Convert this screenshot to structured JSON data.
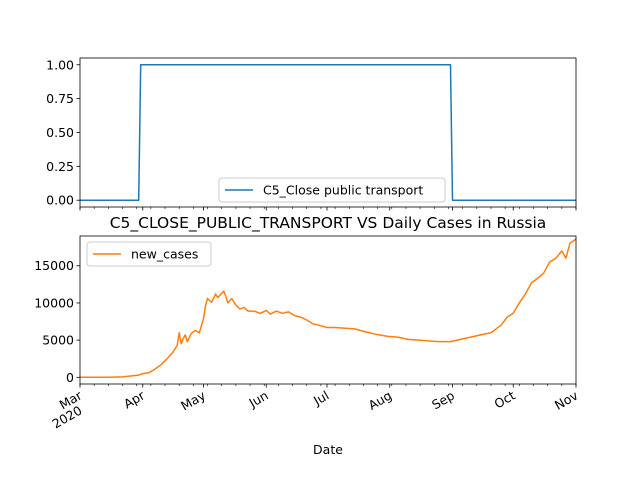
{
  "chart_data": [
    {
      "type": "line",
      "title": "",
      "xlabel": "",
      "ylabel": "",
      "ylim": [
        -0.05,
        1.05
      ],
      "xlim": [
        "2020-03-01",
        "2020-11-01"
      ],
      "yticks": [
        "0.00",
        "0.25",
        "0.50",
        "0.75",
        "1.00"
      ],
      "legend_position": "lower-center",
      "series": [
        {
          "name": "C5_Close public transport",
          "color": "#1f77b4",
          "points": [
            [
              "2020-03-01",
              0
            ],
            [
              "2020-03-30",
              0
            ],
            [
              "2020-03-31",
              1
            ],
            [
              "2020-08-31",
              1
            ],
            [
              "2020-09-01",
              0
            ],
            [
              "2020-11-01",
              0
            ]
          ]
        }
      ]
    },
    {
      "type": "line",
      "title": "C5_CLOSE_PUBLIC_TRANSPORT VS Daily Cases in Russia",
      "xlabel": "Date",
      "ylabel": "",
      "ylim": [
        -900,
        19000
      ],
      "xlim": [
        "2020-03-01",
        "2020-11-01"
      ],
      "yticks": [
        "0",
        "5000",
        "10000",
        "15000"
      ],
      "xtick_labels": [
        {
          "date": "2020-03-01",
          "label": "Mar",
          "sub": "2020"
        },
        {
          "date": "2020-04-01",
          "label": "Apr",
          "sub": ""
        },
        {
          "date": "2020-05-01",
          "label": "May",
          "sub": ""
        },
        {
          "date": "2020-06-01",
          "label": "Jun",
          "sub": ""
        },
        {
          "date": "2020-07-01",
          "label": "Jul",
          "sub": ""
        },
        {
          "date": "2020-08-01",
          "label": "Aug",
          "sub": ""
        },
        {
          "date": "2020-09-01",
          "label": "Sep",
          "sub": ""
        },
        {
          "date": "2020-10-01",
          "label": "Oct",
          "sub": ""
        },
        {
          "date": "2020-11-01",
          "label": "Nov",
          "sub": ""
        }
      ],
      "legend_position": "upper-left",
      "series": [
        {
          "name": "new_cases",
          "color": "#ff7f0e",
          "points": [
            [
              "2020-03-01",
              0
            ],
            [
              "2020-03-15",
              10
            ],
            [
              "2020-03-22",
              60
            ],
            [
              "2020-03-26",
              180
            ],
            [
              "2020-03-30",
              300
            ],
            [
              "2020-04-01",
              500
            ],
            [
              "2020-04-04",
              600
            ],
            [
              "2020-04-07",
              1100
            ],
            [
              "2020-04-10",
              1700
            ],
            [
              "2020-04-13",
              2500
            ],
            [
              "2020-04-16",
              3400
            ],
            [
              "2020-04-18",
              4300
            ],
            [
              "2020-04-19",
              6000
            ],
            [
              "2020-04-20",
              4500
            ],
            [
              "2020-04-21",
              5200
            ],
            [
              "2020-04-22",
              5700
            ],
            [
              "2020-04-23",
              4800
            ],
            [
              "2020-04-25",
              5900
            ],
            [
              "2020-04-27",
              6300
            ],
            [
              "2020-04-29",
              6000
            ],
            [
              "2020-05-01",
              7900
            ],
            [
              "2020-05-02",
              9600
            ],
            [
              "2020-05-03",
              10600
            ],
            [
              "2020-05-05",
              10100
            ],
            [
              "2020-05-07",
              11200
            ],
            [
              "2020-05-08",
              10700
            ],
            [
              "2020-05-09",
              11000
            ],
            [
              "2020-05-11",
              11600
            ],
            [
              "2020-05-12",
              10900
            ],
            [
              "2020-05-13",
              10000
            ],
            [
              "2020-05-15",
              10600
            ],
            [
              "2020-05-17",
              9700
            ],
            [
              "2020-05-19",
              9200
            ],
            [
              "2020-05-21",
              9400
            ],
            [
              "2020-05-23",
              8900
            ],
            [
              "2020-05-26",
              8900
            ],
            [
              "2020-05-29",
              8600
            ],
            [
              "2020-06-01",
              9000
            ],
            [
              "2020-06-03",
              8500
            ],
            [
              "2020-06-06",
              8900
            ],
            [
              "2020-06-09",
              8600
            ],
            [
              "2020-06-12",
              8800
            ],
            [
              "2020-06-15",
              8300
            ],
            [
              "2020-06-18",
              8100
            ],
            [
              "2020-06-21",
              7700
            ],
            [
              "2020-06-24",
              7200
            ],
            [
              "2020-06-27",
              7000
            ],
            [
              "2020-07-01",
              6700
            ],
            [
              "2020-07-05",
              6700
            ],
            [
              "2020-07-10",
              6600
            ],
            [
              "2020-07-15",
              6500
            ],
            [
              "2020-07-20",
              6100
            ],
            [
              "2020-07-25",
              5800
            ],
            [
              "2020-07-31",
              5500
            ],
            [
              "2020-08-05",
              5400
            ],
            [
              "2020-08-10",
              5100
            ],
            [
              "2020-08-15",
              5000
            ],
            [
              "2020-08-20",
              4900
            ],
            [
              "2020-08-25",
              4800
            ],
            [
              "2020-08-31",
              4800
            ],
            [
              "2020-09-05",
              5100
            ],
            [
              "2020-09-10",
              5400
            ],
            [
              "2020-09-15",
              5700
            ],
            [
              "2020-09-20",
              6000
            ],
            [
              "2020-09-25",
              7000
            ],
            [
              "2020-09-28",
              8100
            ],
            [
              "2020-10-01",
              8600
            ],
            [
              "2020-10-04",
              10000
            ],
            [
              "2020-10-07",
              11200
            ],
            [
              "2020-10-10",
              12700
            ],
            [
              "2020-10-13",
              13300
            ],
            [
              "2020-10-16",
              14000
            ],
            [
              "2020-10-19",
              15500
            ],
            [
              "2020-10-22",
              16000
            ],
            [
              "2020-10-25",
              17000
            ],
            [
              "2020-10-27",
              16000
            ],
            [
              "2020-10-29",
              18000
            ],
            [
              "2020-11-01",
              18600
            ]
          ]
        }
      ]
    }
  ]
}
